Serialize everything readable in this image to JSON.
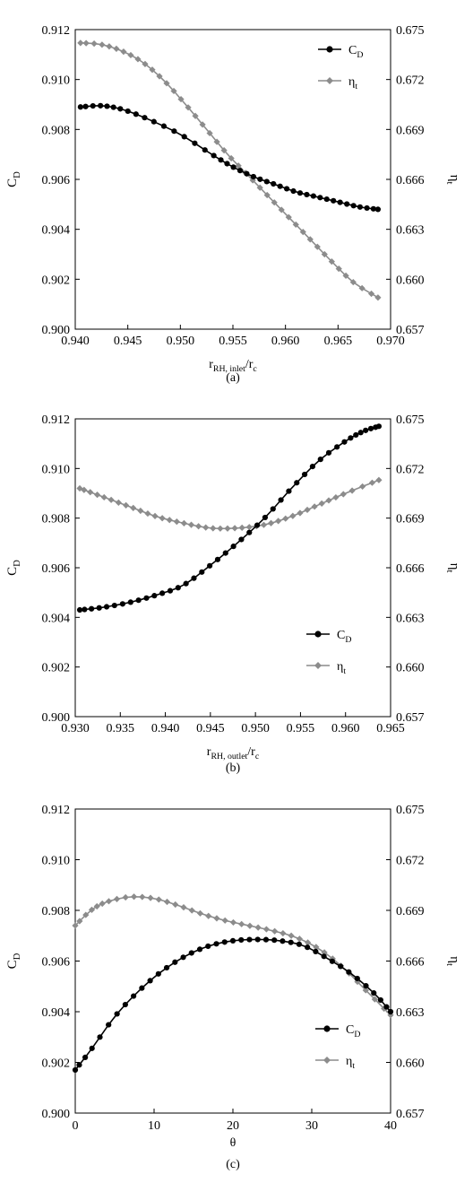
{
  "chart_data": [
    {
      "type": "line",
      "panel_label": "(a)",
      "xlabel": {
        "main": "r",
        "sub": "RH, inlet",
        "tail": "/r",
        "tail_sub": "c"
      },
      "ylabel_left": {
        "main": "C",
        "sub": "D"
      },
      "ylabel_right": {
        "main": "η",
        "sub": "t"
      },
      "xlim": [
        0.94,
        0.97
      ],
      "xticks": [
        "0.940",
        "0.945",
        "0.950",
        "0.955",
        "0.960",
        "0.965",
        "0.970"
      ],
      "ylim_left": [
        0.9,
        0.912
      ],
      "yticks_left": [
        "0.912",
        "0.910",
        "0.908",
        "0.906",
        "0.904",
        "0.902",
        "0.900"
      ],
      "ylim_right": [
        0.657,
        0.675
      ],
      "yticks_right": [
        "0.675",
        "0.672",
        "0.669",
        "0.666",
        "0.663",
        "0.660",
        "0.657"
      ],
      "legend_position": "top-right",
      "series": [
        {
          "name": "C",
          "name_sub": "D",
          "axis": "left",
          "marker": "circle",
          "color": "#000000",
          "anchors": [
            [
              0.9405,
              0.9089
            ],
            [
              0.9425,
              0.90895
            ],
            [
              0.9445,
              0.9088
            ],
            [
              0.947,
              0.9084
            ],
            [
              0.95,
              0.9078
            ],
            [
              0.953,
              0.907
            ],
            [
              0.955,
              0.9065
            ],
            [
              0.957,
              0.9061
            ],
            [
              0.959,
              0.9058
            ],
            [
              0.961,
              0.9055
            ],
            [
              0.963,
              0.9053
            ],
            [
              0.965,
              0.9051
            ],
            [
              0.967,
              0.9049
            ],
            [
              0.9688,
              0.9048
            ]
          ]
        },
        {
          "name": "η",
          "name_sub": "t",
          "axis": "right",
          "marker": "diamond",
          "color": "#8c8c8c",
          "anchors": [
            [
              0.9405,
              0.6742
            ],
            [
              0.9425,
              0.6741
            ],
            [
              0.9445,
              0.6737
            ],
            [
              0.9465,
              0.673
            ],
            [
              0.9485,
              0.6719
            ],
            [
              0.9505,
              0.6705
            ],
            [
              0.9525,
              0.669
            ],
            [
              0.9545,
              0.6675
            ],
            [
              0.9565,
              0.6662
            ],
            [
              0.9585,
              0.6649
            ],
            [
              0.9605,
              0.6636
            ],
            [
              0.9625,
              0.6623
            ],
            [
              0.9645,
              0.661
            ],
            [
              0.9665,
              0.6598
            ],
            [
              0.9688,
              0.6589
            ]
          ]
        }
      ]
    },
    {
      "type": "line",
      "panel_label": "(b)",
      "xlabel": {
        "main": "r",
        "sub": "RH, outlet",
        "tail": "/r",
        "tail_sub": "c"
      },
      "ylabel_left": {
        "main": "C",
        "sub": "D"
      },
      "ylabel_right": {
        "main": "η",
        "sub": "t"
      },
      "xlim": [
        0.93,
        0.965
      ],
      "xticks": [
        "0.930",
        "0.935",
        "0.940",
        "0.945",
        "0.950",
        "0.955",
        "0.960",
        "0.965"
      ],
      "ylim_left": [
        0.9,
        0.912
      ],
      "yticks_left": [
        "0.912",
        "0.910",
        "0.908",
        "0.906",
        "0.904",
        "0.902",
        "0.900"
      ],
      "ylim_right": [
        0.657,
        0.675
      ],
      "yticks_right": [
        "0.675",
        "0.672",
        "0.669",
        "0.666",
        "0.663",
        "0.660",
        "0.657"
      ],
      "legend_position": "bottom-right",
      "series": [
        {
          "name": "C",
          "name_sub": "D",
          "axis": "left",
          "marker": "circle",
          "color": "#000000",
          "anchors": [
            [
              0.9305,
              0.9043
            ],
            [
              0.933,
              0.9044
            ],
            [
              0.936,
              0.9046
            ],
            [
              0.939,
              0.9049
            ],
            [
              0.942,
              0.9053
            ],
            [
              0.945,
              0.9061
            ],
            [
              0.948,
              0.907
            ],
            [
              0.951,
              0.908
            ],
            [
              0.954,
              0.9092
            ],
            [
              0.957,
              0.9103
            ],
            [
              0.96,
              0.9111
            ],
            [
              0.962,
              0.9115
            ],
            [
              0.9637,
              0.9117
            ]
          ]
        },
        {
          "name": "η",
          "name_sub": "t",
          "axis": "right",
          "marker": "diamond",
          "color": "#8c8c8c",
          "anchors": [
            [
              0.9305,
              0.6708
            ],
            [
              0.933,
              0.6703
            ],
            [
              0.936,
              0.6697
            ],
            [
              0.939,
              0.6691
            ],
            [
              0.942,
              0.6687
            ],
            [
              0.945,
              0.6684
            ],
            [
              0.948,
              0.6684
            ],
            [
              0.951,
              0.6686
            ],
            [
              0.954,
              0.6691
            ],
            [
              0.957,
              0.6698
            ],
            [
              0.96,
              0.6705
            ],
            [
              0.9637,
              0.6713
            ]
          ]
        }
      ]
    },
    {
      "type": "line",
      "panel_label": "(c)",
      "xlabel": {
        "main": "θ",
        "sub": "",
        "tail": "",
        "tail_sub": ""
      },
      "ylabel_left": {
        "main": "C",
        "sub": "D"
      },
      "ylabel_right": {
        "main": "η",
        "sub": "t"
      },
      "xlim": [
        0,
        40
      ],
      "xticks": [
        "0",
        "10",
        "20",
        "30",
        "40"
      ],
      "ylim_left": [
        0.9,
        0.912
      ],
      "yticks_left": [
        "0.912",
        "0.910",
        "0.908",
        "0.906",
        "0.904",
        "0.902",
        "0.900"
      ],
      "ylim_right": [
        0.657,
        0.675
      ],
      "yticks_right": [
        "0.675",
        "0.672",
        "0.669",
        "0.666",
        "0.663",
        "0.660",
        "0.657"
      ],
      "legend_position": "bottom-right",
      "series": [
        {
          "name": "C",
          "name_sub": "D",
          "axis": "left",
          "marker": "circle",
          "color": "#000000",
          "anchors": [
            [
              0,
              0.9017
            ],
            [
              2,
              0.9025
            ],
            [
              5,
              0.9038
            ],
            [
              8,
              0.9048
            ],
            [
              11,
              0.9056
            ],
            [
              14,
              0.9062
            ],
            [
              17,
              0.9066
            ],
            [
              20,
              0.9068
            ],
            [
              23,
              0.90685
            ],
            [
              26,
              0.9068
            ],
            [
              29,
              0.9066
            ],
            [
              32,
              0.9061
            ],
            [
              35,
              0.9055
            ],
            [
              38,
              0.9047
            ],
            [
              40,
              0.904
            ]
          ]
        },
        {
          "name": "η",
          "name_sub": "t",
          "axis": "right",
          "marker": "diamond",
          "color": "#8c8c8c",
          "anchors": [
            [
              0,
              0.6681
            ],
            [
              2,
              0.669
            ],
            [
              4,
              0.6695
            ],
            [
              7,
              0.6698
            ],
            [
              10,
              0.6697
            ],
            [
              13,
              0.6693
            ],
            [
              16,
              0.6688
            ],
            [
              19,
              0.6684
            ],
            [
              22,
              0.6681
            ],
            [
              25,
              0.6678
            ],
            [
              28,
              0.6674
            ],
            [
              31,
              0.6667
            ],
            [
              34,
              0.6656
            ],
            [
              37,
              0.6642
            ],
            [
              40,
              0.6628
            ]
          ]
        }
      ]
    }
  ]
}
